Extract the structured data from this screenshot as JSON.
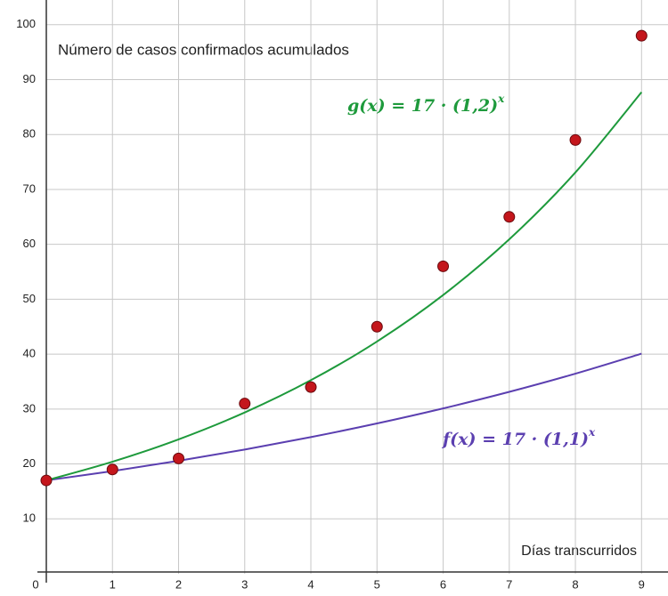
{
  "chart_data": {
    "type": "scatter",
    "title": "Número de casos confirmados acumulados",
    "x_label": "Días transcurridos",
    "x": [
      0,
      1,
      2,
      3,
      4,
      5,
      6,
      7,
      8,
      9
    ],
    "series": [
      {
        "type": "line",
        "color": "#5b3fb0",
        "values": [
          17,
          18.7,
          20.57,
          22.627,
          24.8897,
          27.37867,
          30.116537,
          33.1281907,
          36.44100977,
          40.085110747
        ]
      },
      {
        "type": "line",
        "color": "#1e9a3c",
        "values": [
          17,
          20.4,
          24.48,
          29.376,
          35.2512,
          42.30144,
          50.761728,
          60.9140736,
          73.09688832,
          87.716265984
        ]
      },
      {
        "type": "scatter",
        "color": "#c4161c",
        "values": [
          17,
          19,
          21,
          31,
          34,
          45,
          56,
          65,
          79,
          98
        ]
      }
    ],
    "annotations": [
      {
        "text": "g(x) = 17 · (1,2)",
        "exponent": "x",
        "color": "#1e9a3c"
      },
      {
        "text": "f(x) = 17 · (1,1)",
        "exponent": "x",
        "color": "#5b3fb0"
      }
    ],
    "xlim": [
      0,
      9.4
    ],
    "ylim": [
      0,
      104.5
    ],
    "xticks": [
      0,
      1,
      2,
      3,
      4,
      5,
      6,
      7,
      8,
      9
    ],
    "yticks": [
      10,
      20,
      30,
      40,
      50,
      60,
      70,
      80,
      90,
      100
    ],
    "grid": true
  }
}
